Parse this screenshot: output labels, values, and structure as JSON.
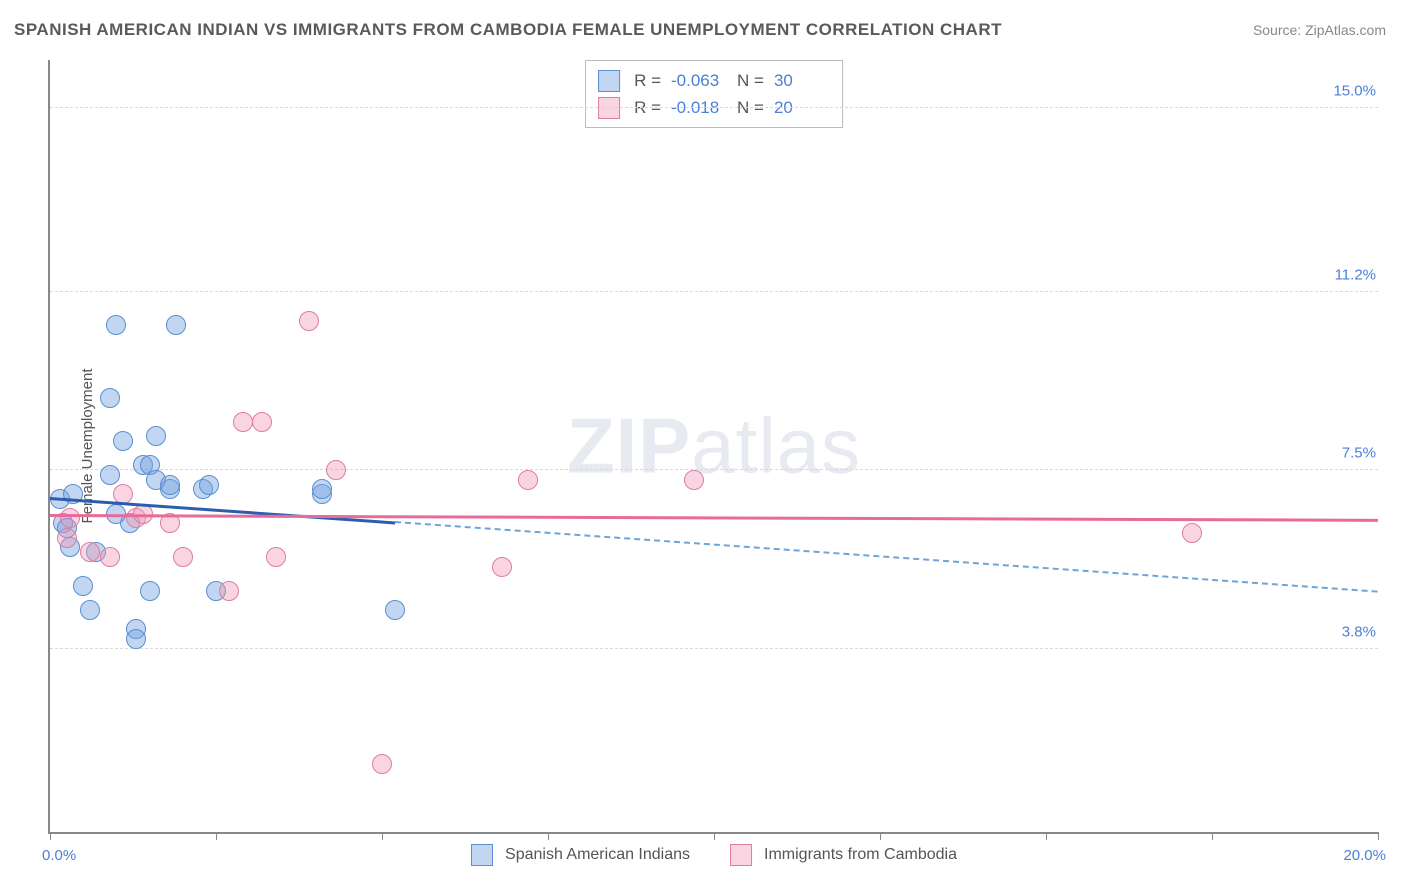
{
  "title": "SPANISH AMERICAN INDIAN VS IMMIGRANTS FROM CAMBODIA FEMALE UNEMPLOYMENT CORRELATION CHART",
  "source": "Source: ZipAtlas.com",
  "ylabel": "Female Unemployment",
  "watermark_a": "ZIP",
  "watermark_b": "atlas",
  "chart": {
    "type": "scatter",
    "xlim": [
      0.0,
      20.0
    ],
    "ylim": [
      0.0,
      16.0
    ],
    "x_min_label": "0.0%",
    "x_max_label": "20.0%",
    "xtick_positions": [
      0,
      2.5,
      5,
      7.5,
      10,
      12.5,
      15,
      17.5,
      20
    ],
    "ytick_labels": [
      {
        "v": 3.8,
        "label": "3.8%"
      },
      {
        "v": 7.5,
        "label": "7.5%"
      },
      {
        "v": 11.2,
        "label": "11.2%"
      },
      {
        "v": 15.0,
        "label": "15.0%"
      }
    ],
    "background_color": "#ffffff",
    "grid_color": "#d8d8d8",
    "marker_radius": 10,
    "series": [
      {
        "name": "Spanish American Indians",
        "fill": "rgba(120,165,225,0.45)",
        "stroke": "#5a8fd0",
        "R": "-0.063",
        "N": "30",
        "points": [
          [
            0.15,
            6.9
          ],
          [
            0.2,
            6.4
          ],
          [
            0.25,
            6.3
          ],
          [
            0.3,
            5.9
          ],
          [
            0.35,
            7.0
          ],
          [
            0.5,
            5.1
          ],
          [
            0.6,
            4.6
          ],
          [
            0.7,
            5.8
          ],
          [
            0.9,
            9.0
          ],
          [
            1.0,
            10.5
          ],
          [
            1.1,
            8.1
          ],
          [
            1.2,
            6.4
          ],
          [
            1.3,
            4.2
          ],
          [
            1.3,
            4.0
          ],
          [
            1.4,
            7.6
          ],
          [
            1.5,
            7.6
          ],
          [
            1.5,
            5.0
          ],
          [
            1.6,
            8.2
          ],
          [
            1.6,
            7.3
          ],
          [
            1.8,
            7.1
          ],
          [
            1.8,
            7.2
          ],
          [
            1.9,
            10.5
          ],
          [
            2.3,
            7.1
          ],
          [
            2.4,
            7.2
          ],
          [
            2.5,
            5.0
          ],
          [
            4.1,
            7.0
          ],
          [
            4.1,
            7.1
          ],
          [
            0.9,
            7.4
          ],
          [
            5.2,
            4.6
          ],
          [
            1.0,
            6.6
          ]
        ],
        "trend": {
          "y0": 6.95,
          "y20": 5.0,
          "solid_until_x": 5.2,
          "solid_color": "#2a5db0",
          "dash_color": "#6da5d8"
        }
      },
      {
        "name": "Immigrants from Cambodia",
        "fill": "rgba(240,150,180,0.40)",
        "stroke": "#dd7da2",
        "R": "-0.018",
        "N": "20",
        "points": [
          [
            0.25,
            6.1
          ],
          [
            0.3,
            6.5
          ],
          [
            0.6,
            5.8
          ],
          [
            0.9,
            5.7
          ],
          [
            1.1,
            7.0
          ],
          [
            1.3,
            6.5
          ],
          [
            1.4,
            6.6
          ],
          [
            1.8,
            6.4
          ],
          [
            2.0,
            5.7
          ],
          [
            2.7,
            5.0
          ],
          [
            2.9,
            8.5
          ],
          [
            3.2,
            8.5
          ],
          [
            3.4,
            5.7
          ],
          [
            3.9,
            10.6
          ],
          [
            4.3,
            7.5
          ],
          [
            5.0,
            1.4
          ],
          [
            6.8,
            5.5
          ],
          [
            7.2,
            7.3
          ],
          [
            9.7,
            7.3
          ],
          [
            17.2,
            6.2
          ]
        ],
        "trend": {
          "y0": 6.6,
          "y20": 6.5,
          "solid_until_x": 20.0,
          "solid_color": "#e86a9a"
        }
      }
    ]
  },
  "stat_legend_labels": {
    "R": "R =",
    "N": "N ="
  },
  "bottom_legend": [
    {
      "label": "Spanish American Indians",
      "fill": "rgba(120,165,225,0.45)",
      "stroke": "#5a8fd0"
    },
    {
      "label": "Immigrants from Cambodia",
      "fill": "rgba(240,150,180,0.40)",
      "stroke": "#dd7da2"
    }
  ]
}
